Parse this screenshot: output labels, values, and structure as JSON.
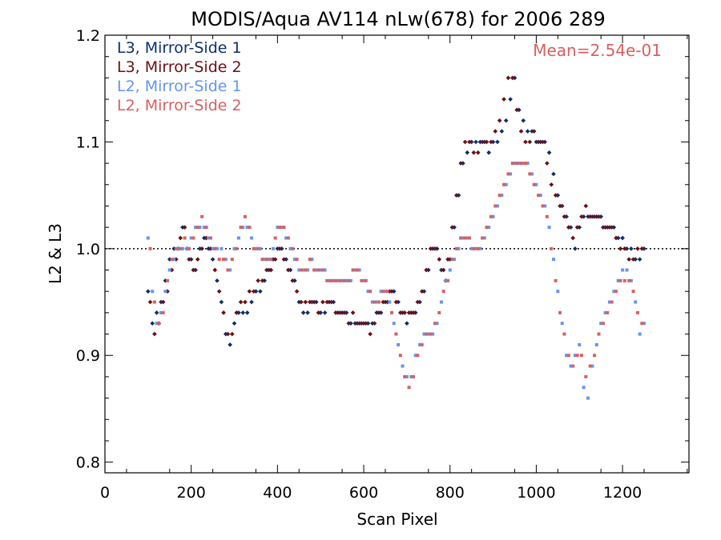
{
  "chart_data": {
    "type": "scatter",
    "title": "MODIS/Aqua AV114 nLw(678) for 2006 289",
    "xlabel": "Scan Pixel",
    "ylabel": "L2 & L3",
    "xlim": [
      0,
      1354
    ],
    "ylim": [
      0.79,
      1.2
    ],
    "xticks": [
      0,
      200,
      400,
      600,
      800,
      1000,
      1200
    ],
    "xtick_labels": [
      "0",
      "200",
      "400",
      "600",
      "800",
      "1000",
      "1200"
    ],
    "yticks": [
      0.8,
      0.9,
      1.0,
      1.1,
      1.2
    ],
    "ytick_labels": [
      "0.8",
      "0.9",
      "1.0",
      "1.1",
      "1.2"
    ],
    "reference_line": {
      "y": 1.0,
      "style": "dotted"
    },
    "annotation": {
      "text": "Mean=2.54e-01",
      "color": "#d95f5f"
    },
    "legend_position": "top-left",
    "series": [
      {
        "name": "L3, Mirror-Side 1",
        "color": "#0d2f6b",
        "marker": "diamond",
        "x": [
          100,
          110,
          120,
          130,
          140,
          150,
          160,
          170,
          180,
          190,
          200,
          210,
          220,
          230,
          240,
          250,
          260,
          270,
          280,
          290,
          300,
          310,
          320,
          330,
          340,
          350,
          360,
          370,
          380,
          390,
          400,
          410,
          420,
          430,
          440,
          450,
          460,
          470,
          480,
          490,
          500,
          510,
          520,
          530,
          540,
          550,
          560,
          570,
          580,
          590,
          600,
          610,
          620,
          630,
          640,
          650,
          660,
          670,
          680,
          690,
          700,
          710,
          720,
          730,
          740,
          750,
          760,
          770,
          780,
          790,
          800,
          810,
          820,
          830,
          840,
          850,
          860,
          870,
          880,
          890,
          900,
          910,
          920,
          930,
          940,
          950,
          960,
          970,
          980,
          990,
          1000,
          1010,
          1020,
          1030,
          1040,
          1050,
          1060,
          1070,
          1080,
          1090,
          1100,
          1110,
          1120,
          1130,
          1140,
          1150,
          1160,
          1170,
          1180,
          1190,
          1200,
          1210,
          1220,
          1230,
          1240,
          1250
        ],
        "y": [
          0.96,
          0.93,
          0.94,
          0.95,
          0.97,
          0.99,
          1.0,
          1.0,
          1.02,
          1.0,
          0.99,
          0.98,
          1.0,
          1.01,
          1.0,
          0.99,
          0.97,
          0.95,
          0.92,
          0.91,
          0.93,
          0.94,
          0.94,
          0.94,
          0.95,
          0.96,
          0.96,
          0.97,
          0.98,
          0.99,
          1.0,
          1.0,
          0.99,
          0.98,
          0.97,
          0.95,
          0.94,
          0.94,
          0.95,
          0.95,
          0.94,
          0.94,
          0.95,
          0.95,
          0.94,
          0.94,
          0.94,
          0.93,
          0.93,
          0.93,
          0.93,
          0.93,
          0.93,
          0.94,
          0.94,
          0.95,
          0.96,
          0.96,
          0.95,
          0.94,
          0.93,
          0.94,
          0.94,
          0.95,
          0.96,
          0.98,
          1.0,
          1.0,
          0.98,
          0.97,
          0.99,
          1.02,
          1.05,
          1.08,
          1.09,
          1.1,
          1.1,
          1.1,
          1.1,
          1.09,
          1.1,
          1.1,
          1.11,
          1.12,
          1.14,
          1.16,
          1.13,
          1.12,
          1.11,
          1.11,
          1.1,
          1.1,
          1.1,
          1.09,
          1.07,
          1.05,
          1.04,
          1.03,
          1.02,
          1.0,
          1.02,
          1.03,
          1.03,
          1.03,
          1.03,
          1.03,
          1.02,
          1.02,
          1.02,
          1.01,
          1.01,
          1.0,
          1.0,
          0.99,
          0.99,
          1.0
        ]
      },
      {
        "name": "L3, Mirror-Side 2",
        "color": "#6b0f14",
        "marker": "diamond",
        "x": [
          105,
          115,
          125,
          135,
          145,
          155,
          165,
          175,
          185,
          195,
          205,
          215,
          225,
          235,
          245,
          255,
          265,
          275,
          285,
          295,
          305,
          315,
          325,
          335,
          345,
          355,
          365,
          375,
          385,
          395,
          405,
          415,
          425,
          435,
          445,
          455,
          465,
          475,
          485,
          495,
          505,
          515,
          525,
          535,
          545,
          555,
          565,
          575,
          585,
          595,
          605,
          615,
          625,
          635,
          645,
          655,
          665,
          675,
          685,
          695,
          705,
          715,
          725,
          735,
          745,
          755,
          765,
          775,
          785,
          795,
          805,
          815,
          825,
          835,
          845,
          855,
          865,
          875,
          885,
          895,
          905,
          915,
          925,
          935,
          945,
          955,
          965,
          975,
          985,
          995,
          1005,
          1015,
          1025,
          1035,
          1045,
          1055,
          1065,
          1075,
          1085,
          1095,
          1105,
          1115,
          1125,
          1135,
          1145,
          1155,
          1165,
          1175,
          1185,
          1195,
          1205,
          1215,
          1225,
          1235,
          1245
        ],
        "y": [
          0.95,
          0.92,
          0.93,
          0.95,
          0.96,
          0.98,
          0.99,
          1.01,
          1.02,
          0.99,
          0.98,
          0.99,
          1.0,
          1.01,
          1.0,
          0.98,
          0.96,
          0.94,
          0.92,
          0.92,
          0.94,
          0.95,
          0.95,
          0.96,
          0.96,
          0.97,
          0.97,
          0.98,
          0.98,
          0.99,
          1.0,
          0.99,
          0.98,
          0.97,
          0.96,
          0.95,
          0.95,
          0.95,
          0.95,
          0.94,
          0.95,
          0.95,
          0.95,
          0.94,
          0.94,
          0.94,
          0.93,
          0.94,
          0.93,
          0.93,
          0.93,
          0.92,
          0.93,
          0.94,
          0.95,
          0.95,
          0.96,
          0.95,
          0.94,
          0.94,
          0.94,
          0.94,
          0.95,
          0.96,
          0.98,
          1.0,
          1.0,
          0.99,
          0.98,
          0.99,
          1.02,
          1.05,
          1.08,
          1.1,
          1.1,
          1.09,
          1.09,
          1.1,
          1.1,
          1.1,
          1.11,
          1.12,
          1.14,
          1.16,
          1.16,
          1.13,
          1.11,
          1.1,
          1.1,
          1.11,
          1.1,
          1.1,
          1.08,
          1.06,
          1.05,
          1.04,
          1.03,
          1.02,
          1.01,
          1.02,
          1.03,
          1.04,
          1.03,
          1.03,
          1.03,
          1.02,
          1.02,
          1.02,
          1.01,
          1.0,
          1.0,
          0.99,
          0.99,
          1.0,
          1.0
        ]
      },
      {
        "name": "L2, Mirror-Side 1",
        "color": "#6495ed",
        "marker": "square",
        "x": [
          100,
          110,
          120,
          130,
          140,
          150,
          160,
          170,
          180,
          190,
          200,
          210,
          220,
          230,
          240,
          250,
          260,
          270,
          280,
          290,
          300,
          310,
          320,
          330,
          340,
          350,
          360,
          370,
          380,
          390,
          400,
          410,
          420,
          430,
          440,
          450,
          460,
          470,
          480,
          490,
          500,
          510,
          520,
          530,
          540,
          550,
          560,
          570,
          580,
          590,
          600,
          610,
          620,
          630,
          640,
          650,
          660,
          670,
          680,
          690,
          700,
          710,
          720,
          730,
          740,
          750,
          760,
          770,
          780,
          790,
          800,
          810,
          820,
          830,
          840,
          850,
          860,
          870,
          880,
          890,
          900,
          910,
          920,
          930,
          940,
          950,
          960,
          970,
          980,
          990,
          1000,
          1010,
          1020,
          1030,
          1040,
          1050,
          1060,
          1070,
          1080,
          1090,
          1100,
          1110,
          1120,
          1130,
          1140,
          1150,
          1160,
          1170,
          1180,
          1190,
          1200,
          1210,
          1220,
          1230,
          1240,
          1250
        ],
        "y": [
          1.01,
          0.96,
          0.93,
          0.94,
          0.96,
          0.98,
          0.99,
          1.0,
          1.0,
          1.0,
          1.01,
          1.02,
          1.02,
          1.02,
          1.01,
          1.0,
          1.0,
          1.0,
          0.99,
          0.98,
          1.0,
          1.01,
          1.02,
          1.02,
          1.01,
          1.0,
          1.0,
          0.99,
          0.99,
          1.0,
          1.02,
          1.02,
          1.01,
          1.0,
          0.99,
          0.98,
          0.98,
          0.98,
          0.99,
          0.98,
          0.98,
          0.98,
          0.97,
          0.97,
          0.97,
          0.97,
          0.97,
          0.97,
          0.98,
          0.98,
          0.97,
          0.96,
          0.95,
          0.95,
          0.96,
          0.96,
          0.95,
          0.93,
          0.91,
          0.89,
          0.88,
          0.88,
          0.9,
          0.91,
          0.92,
          0.92,
          0.92,
          0.93,
          0.95,
          0.97,
          0.98,
          0.99,
          1.0,
          1.01,
          1.01,
          1.0,
          1.0,
          1.0,
          1.01,
          1.02,
          1.03,
          1.04,
          1.05,
          1.06,
          1.07,
          1.08,
          1.08,
          1.08,
          1.08,
          1.07,
          1.06,
          1.05,
          1.04,
          1.02,
          0.99,
          0.96,
          0.93,
          0.9,
          0.89,
          0.9,
          0.91,
          0.87,
          0.86,
          0.89,
          0.91,
          0.93,
          0.94,
          0.95,
          0.96,
          0.97,
          0.98,
          0.98,
          0.97,
          0.95,
          0.92,
          0.93
        ]
      },
      {
        "name": "L2, Mirror-Side 2",
        "color": "#d95f5f",
        "marker": "square",
        "x": [
          105,
          115,
          125,
          135,
          145,
          155,
          165,
          175,
          185,
          195,
          205,
          215,
          225,
          235,
          245,
          255,
          265,
          275,
          285,
          295,
          305,
          315,
          325,
          335,
          345,
          355,
          365,
          375,
          385,
          395,
          405,
          415,
          425,
          435,
          445,
          455,
          465,
          475,
          485,
          495,
          505,
          515,
          525,
          535,
          545,
          555,
          565,
          575,
          585,
          595,
          605,
          615,
          625,
          635,
          645,
          655,
          665,
          675,
          685,
          695,
          705,
          715,
          725,
          735,
          745,
          755,
          765,
          775,
          785,
          795,
          805,
          815,
          825,
          835,
          845,
          855,
          865,
          875,
          885,
          895,
          905,
          915,
          925,
          935,
          945,
          955,
          965,
          975,
          985,
          995,
          1005,
          1015,
          1025,
          1035,
          1045,
          1055,
          1065,
          1075,
          1085,
          1095,
          1105,
          1115,
          1125,
          1135,
          1145,
          1155,
          1165,
          1175,
          1185,
          1195,
          1205,
          1215,
          1225,
          1235,
          1245
        ],
        "y": [
          1.0,
          0.95,
          0.93,
          0.94,
          0.97,
          0.99,
          1.0,
          1.0,
          1.01,
          1.0,
          1.01,
          1.02,
          1.03,
          1.02,
          1.01,
          1.0,
          0.99,
          0.99,
          0.98,
          0.99,
          1.0,
          1.02,
          1.03,
          1.02,
          1.0,
          1.0,
          0.99,
          0.99,
          0.99,
          1.01,
          1.02,
          1.02,
          1.01,
          1.0,
          0.99,
          0.98,
          0.98,
          0.99,
          0.98,
          0.98,
          0.98,
          0.97,
          0.97,
          0.97,
          0.97,
          0.97,
          0.97,
          0.98,
          0.98,
          0.97,
          0.97,
          0.96,
          0.95,
          0.95,
          0.96,
          0.96,
          0.94,
          0.92,
          0.9,
          0.88,
          0.87,
          0.88,
          0.9,
          0.91,
          0.92,
          0.92,
          0.93,
          0.94,
          0.96,
          0.97,
          0.99,
          1.0,
          1.01,
          1.01,
          1.01,
          1.0,
          1.0,
          1.01,
          1.02,
          1.03,
          1.04,
          1.05,
          1.06,
          1.07,
          1.08,
          1.08,
          1.08,
          1.08,
          1.07,
          1.06,
          1.05,
          1.04,
          1.03,
          1.0,
          0.97,
          0.94,
          0.92,
          0.9,
          0.89,
          0.9,
          0.9,
          0.88,
          0.89,
          0.9,
          0.92,
          0.93,
          0.94,
          0.95,
          0.96,
          0.97,
          0.97,
          0.97,
          0.96,
          0.94,
          0.93
        ]
      }
    ]
  }
}
